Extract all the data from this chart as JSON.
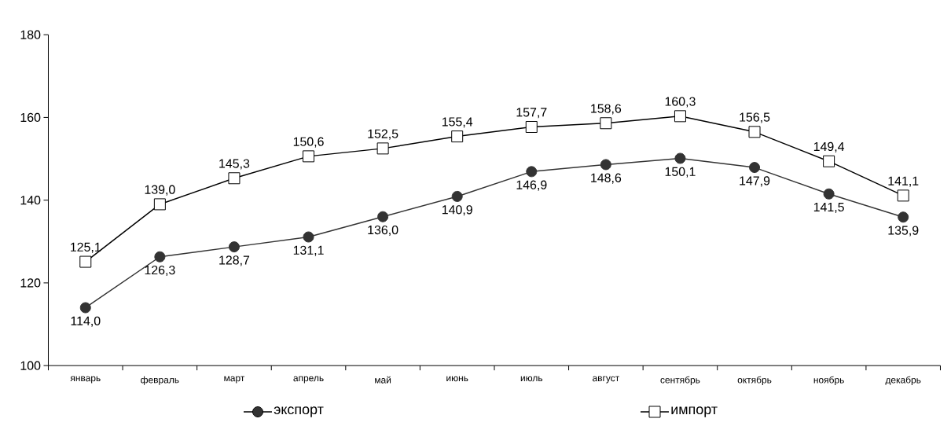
{
  "chart_data": {
    "type": "line",
    "categories": [
      "январь",
      "февраль",
      "март",
      "апрель",
      "май",
      "июнь",
      "июль",
      "август",
      "сентябрь",
      "октябрь",
      "ноябрь",
      "декабрь"
    ],
    "ylim": [
      100,
      180
    ],
    "yticks": [
      100,
      120,
      140,
      160,
      180
    ],
    "grid": false,
    "legend": "bottom",
    "line_style": "solid",
    "series": [
      {
        "name": "экспорт",
        "color": "#333333",
        "marker": "circle",
        "values": [
          114.0,
          126.3,
          128.7,
          131.1,
          136.0,
          140.9,
          146.9,
          148.6,
          150.1,
          147.9,
          141.5,
          135.9
        ],
        "value_labels": [
          "114,0",
          "126,3",
          "128,7",
          "131,1",
          "136,0",
          "140,9",
          "146,9",
          "148,6",
          "150,1",
          "147,9",
          "141,5",
          "135,9"
        ]
      },
      {
        "name": "импорт",
        "color": "#000000",
        "marker": "square",
        "values": [
          125.1,
          139.0,
          145.3,
          150.6,
          152.5,
          155.4,
          157.7,
          158.6,
          160.3,
          156.5,
          149.4,
          141.1
        ],
        "value_labels": [
          "125,1",
          "139,0",
          "145,3",
          "150,6",
          "152,5",
          "155,4",
          "157,7",
          "158,6",
          "160,3",
          "156,5",
          "149,4",
          "141,1"
        ]
      }
    ]
  }
}
